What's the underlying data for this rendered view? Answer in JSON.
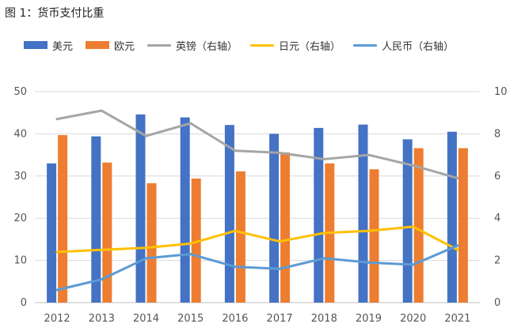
{
  "figure_title": "图 1：货币支付比重",
  "chart_data": {
    "type": "bar",
    "categories": [
      "2012",
      "2013",
      "2014",
      "2015",
      "2016",
      "2017",
      "2018",
      "2019",
      "2020",
      "2021"
    ],
    "left_axis": {
      "ylim": [
        0,
        50
      ],
      "ticks": [
        0,
        10,
        20,
        30,
        40,
        50
      ]
    },
    "right_axis": {
      "ylim": [
        0,
        10
      ],
      "ticks": [
        0,
        2,
        4,
        6,
        8,
        10
      ]
    },
    "grid": true,
    "legend_position": "top",
    "bar_series": [
      {
        "name": "美元",
        "color": "#4472C4",
        "values": [
          33.0,
          39.4,
          44.6,
          43.9,
          42.1,
          40.0,
          41.4,
          42.2,
          38.7,
          40.5
        ]
      },
      {
        "name": "欧元",
        "color": "#ED7D31",
        "values": [
          39.7,
          33.2,
          28.3,
          29.4,
          31.1,
          35.6,
          33.0,
          31.6,
          36.6,
          36.6
        ]
      }
    ],
    "line_series": [
      {
        "name": "英镑（右轴）",
        "color": "#A5A5A5",
        "axis": "right",
        "values": [
          8.7,
          9.1,
          7.9,
          8.5,
          7.2,
          7.1,
          6.8,
          7.0,
          6.5,
          5.9
        ]
      },
      {
        "name": "日元（右轴）",
        "color": "#FFC000",
        "axis": "right",
        "values": [
          2.4,
          2.5,
          2.6,
          2.8,
          3.4,
          2.9,
          3.3,
          3.4,
          3.6,
          2.5
        ]
      },
      {
        "name": "人民币（右轴）",
        "color": "#5B9BD5",
        "axis": "right",
        "values": [
          0.6,
          1.1,
          2.1,
          2.3,
          1.7,
          1.6,
          2.1,
          1.9,
          1.8,
          2.7
        ]
      }
    ]
  }
}
